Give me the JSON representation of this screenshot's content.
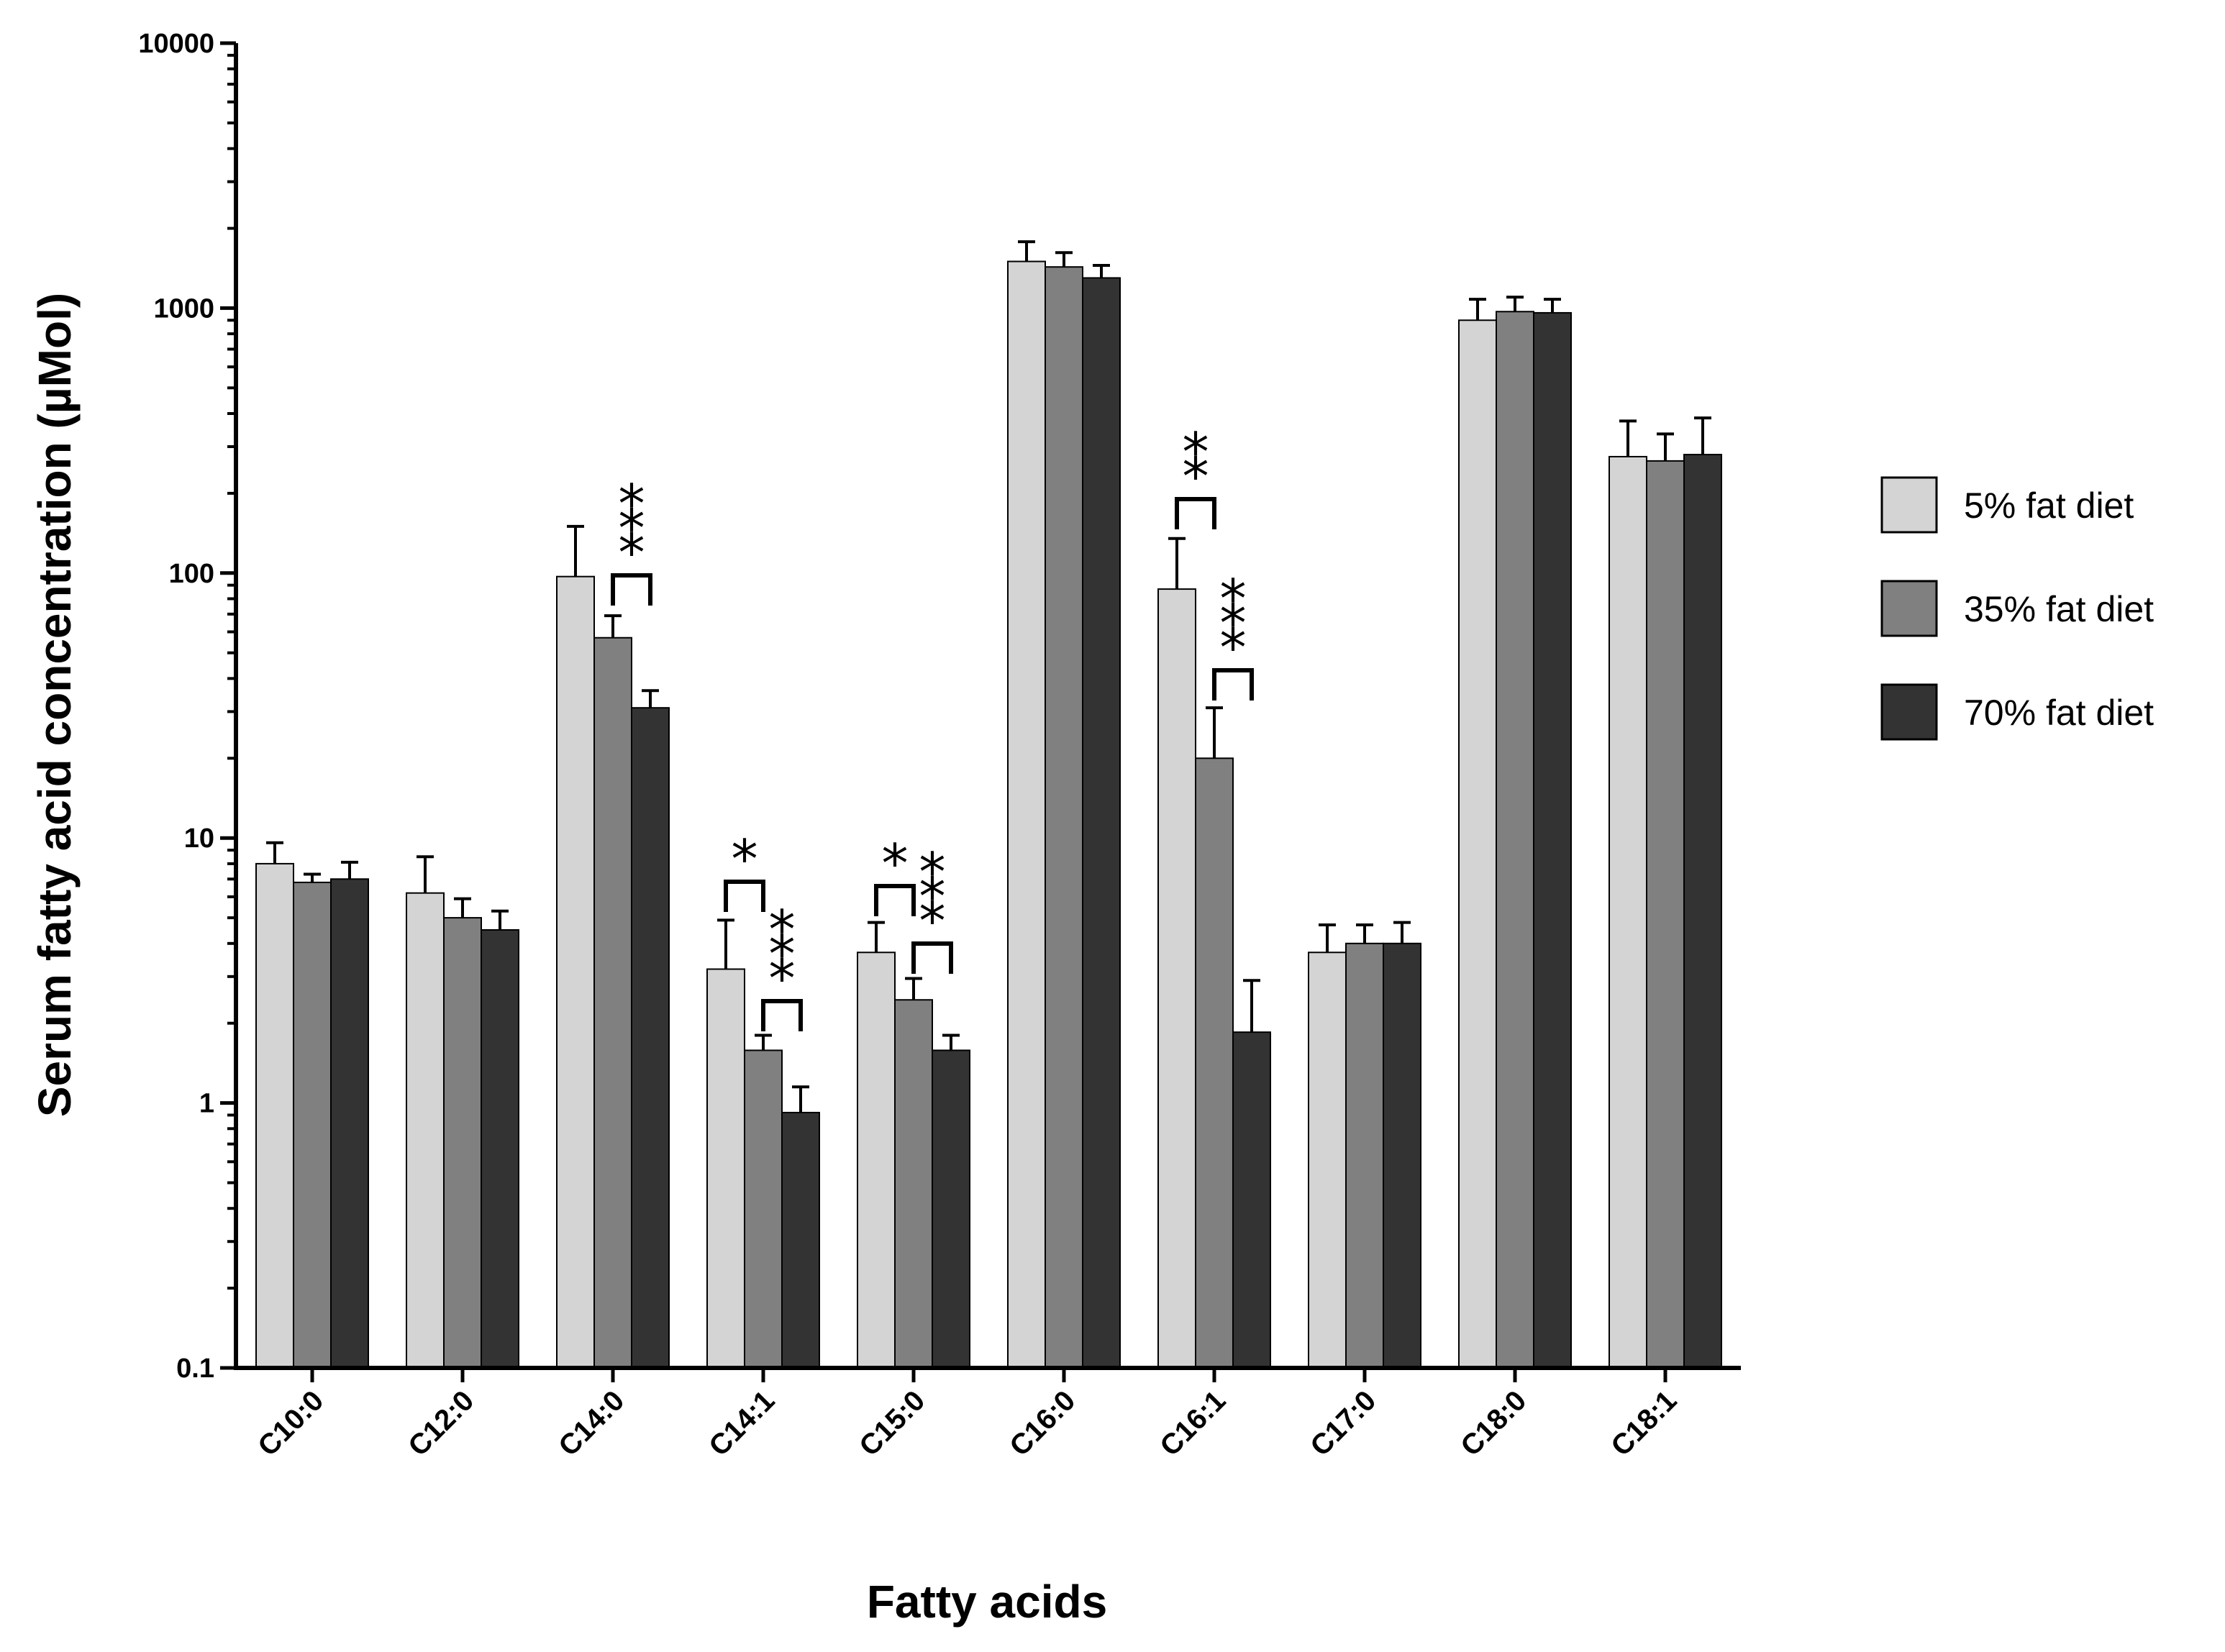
{
  "chart_data": {
    "type": "bar",
    "title": "",
    "xlabel": "Fatty acids",
    "ylabel": "Serum fatty acid concentration (µMol)",
    "yscale": "log",
    "ylim": [
      0.1,
      10000
    ],
    "yticks": [
      {
        "value": 0.1,
        "label": "0.1"
      },
      {
        "value": 1,
        "label": "1"
      },
      {
        "value": 10,
        "label": "10"
      },
      {
        "value": 100,
        "label": "100"
      },
      {
        "value": 1000,
        "label": "1000"
      },
      {
        "value": 10000,
        "label": "10000"
      }
    ],
    "categories": [
      "C10:0",
      "C12:0",
      "C14:0",
      "C14:1",
      "C15:0",
      "C16:0",
      "C16:1",
      "C17:0",
      "C18:0",
      "C18:1"
    ],
    "series": [
      {
        "name": "5% fat diet",
        "color": "#d4d4d4",
        "values": [
          8.0,
          6.2,
          97,
          3.2,
          3.7,
          1500,
          87,
          3.7,
          900,
          275
        ],
        "errors": [
          9.6,
          8.5,
          150,
          4.9,
          4.8,
          1780,
          135,
          4.7,
          1080,
          375
        ]
      },
      {
        "name": "35% fat diet",
        "color": "#808080",
        "values": [
          6.8,
          5.0,
          57,
          1.58,
          2.45,
          1430,
          20,
          4.0,
          970,
          265
        ],
        "errors": [
          7.3,
          5.9,
          69,
          1.8,
          2.95,
          1620,
          31,
          4.7,
          1100,
          335
        ]
      },
      {
        "name": "70% fat diet",
        "color": "#333333",
        "values": [
          7.0,
          4.5,
          31,
          0.92,
          1.58,
          1300,
          1.85,
          4.0,
          960,
          280
        ],
        "errors": [
          8.1,
          5.3,
          36,
          1.15,
          1.8,
          1450,
          2.9,
          4.8,
          1080,
          385
        ]
      }
    ],
    "legend_position": "right",
    "significance": [
      {
        "category": "C14:0",
        "from_series": 1,
        "to_series": 2,
        "label": "***"
      },
      {
        "category": "C14:1",
        "from_series": 0,
        "to_series": 1,
        "label": "*"
      },
      {
        "category": "C14:1",
        "from_series": 1,
        "to_series": 2,
        "label": "***"
      },
      {
        "category": "C15:0",
        "from_series": 0,
        "to_series": 1,
        "label": "*"
      },
      {
        "category": "C15:0",
        "from_series": 1,
        "to_series": 2,
        "label": "***"
      },
      {
        "category": "C16:1",
        "from_series": 0,
        "to_series": 1,
        "label": "**"
      },
      {
        "category": "C16:1",
        "from_series": 1,
        "to_series": 2,
        "label": "***"
      }
    ]
  }
}
